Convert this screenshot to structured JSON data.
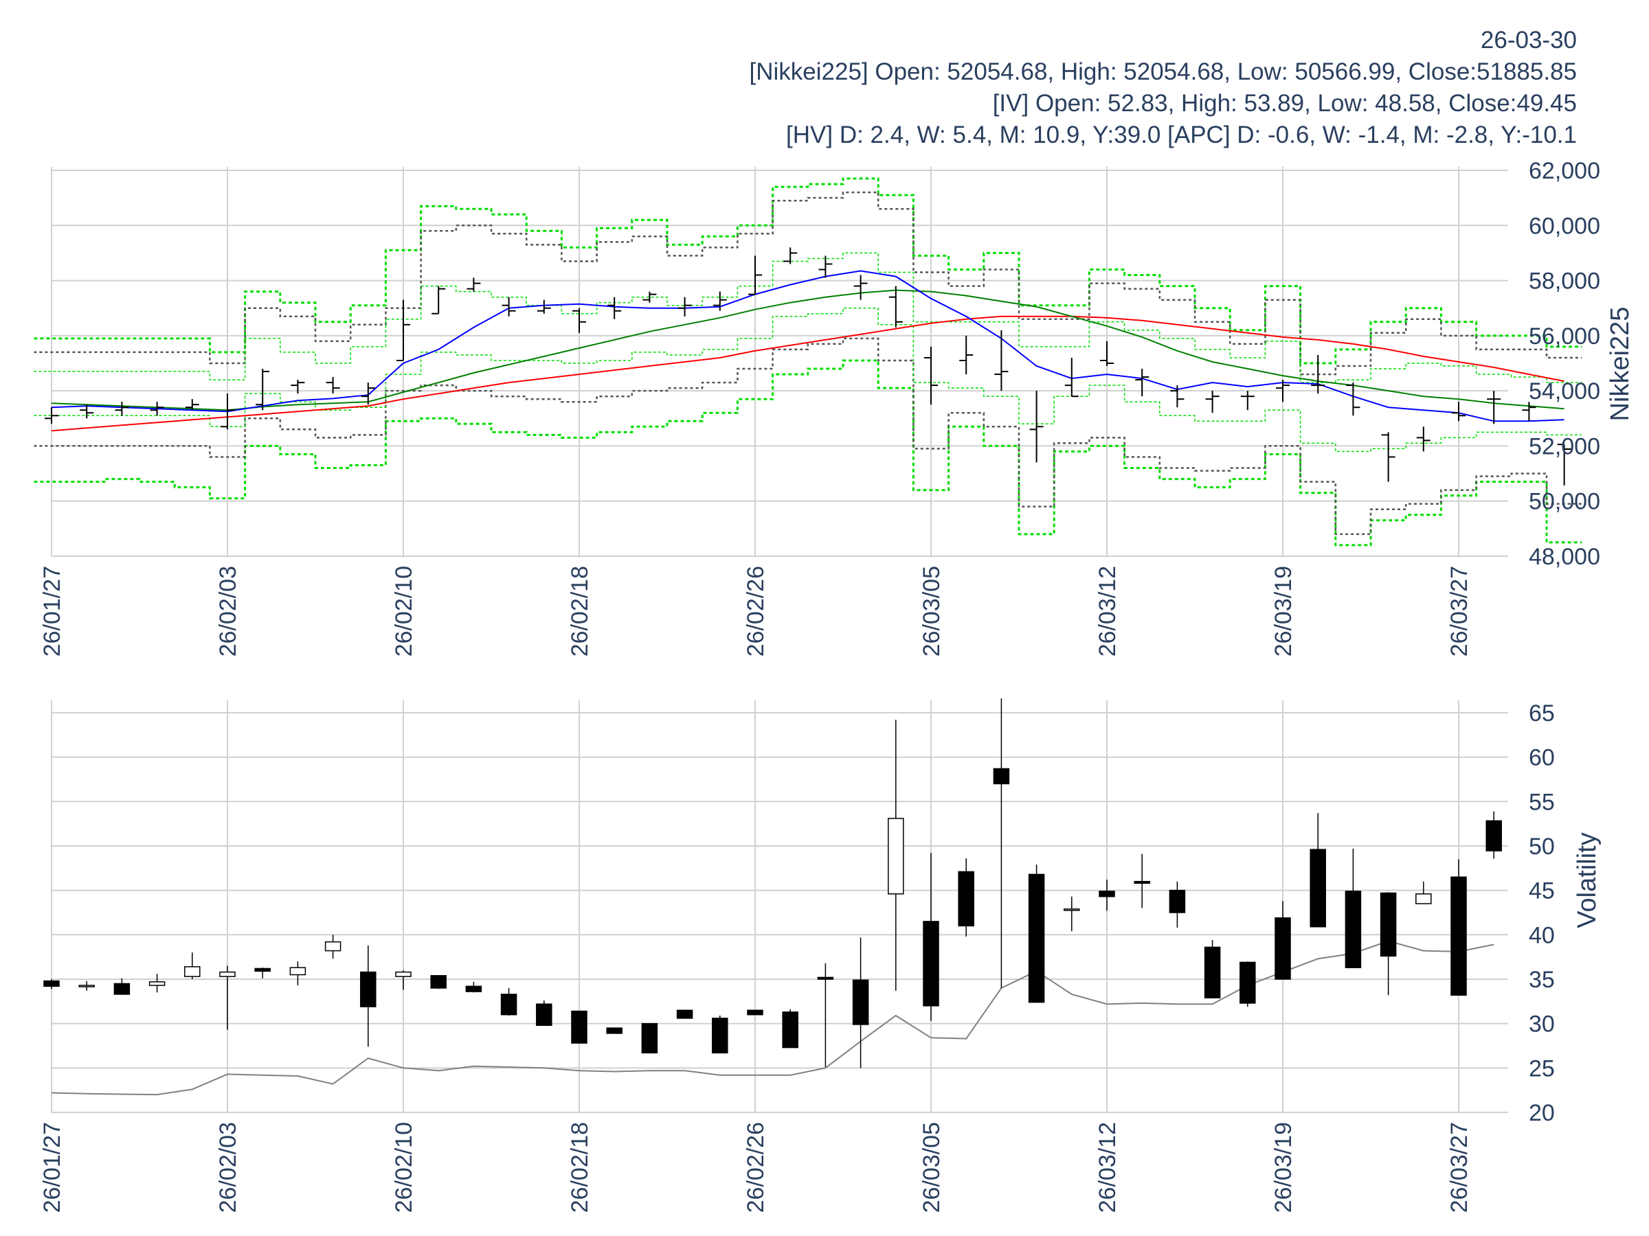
{
  "header": {
    "date": "26-03-30",
    "line1": "[Nikkei225] Open: 52054.68, High: 52054.68, Low: 50566.99, Close:51885.85",
    "line2": "[IV] Open: 52.83, High: 53.89, Low: 48.58, Close:49.45",
    "line3": "[HV] D: 2.4, W: 5.4, M: 10.9, Y:39.0 [APC] D: -0.6, W: -1.4, M: -2.8, Y:-10.1"
  },
  "colors": {
    "ma_blue": "#0000ff",
    "ma_green": "#008000",
    "ma_red": "#ff0000",
    "band_green": "#00dd00",
    "band_gray": "#555555",
    "grid": "#d0d0d0",
    "hv_line": "#808080",
    "candle_down": "#000000",
    "candle_up": "#ffffff"
  },
  "chart_data": [
    {
      "type": "ohlc",
      "ylabel": "Nikkei225",
      "ylim": [
        48000,
        62000
      ],
      "yticks": [
        "48,000",
        "50,000",
        "52,000",
        "54,000",
        "56,000",
        "58,000",
        "60,000",
        "62,000"
      ],
      "ytick_values": [
        48000,
        50000,
        52000,
        54000,
        56000,
        58000,
        60000,
        62000
      ],
      "xticks": [
        "26/01/27",
        "26/02/03",
        "26/02/10",
        "26/02/18",
        "26/02/26",
        "26/03/05",
        "26/03/12",
        "26/03/19",
        "26/03/27"
      ],
      "xtick_index": [
        0,
        5,
        10,
        15,
        20,
        25,
        30,
        35,
        40
      ],
      "grid": true,
      "ohlc": [
        [
          53000,
          53400,
          52800,
          53100
        ],
        [
          53300,
          53500,
          53000,
          53200
        ],
        [
          53300,
          53600,
          53100,
          53400
        ],
        [
          53300,
          53600,
          53100,
          53400
        ],
        [
          53400,
          53700,
          53300,
          53500
        ],
        [
          52700,
          53900,
          52600,
          53300
        ],
        [
          53500,
          54800,
          53300,
          54700
        ],
        [
          54200,
          54400,
          53900,
          54300
        ],
        [
          54300,
          54500,
          53900,
          54100
        ],
        [
          53800,
          54300,
          53500,
          54100
        ],
        [
          55100,
          57300,
          55100,
          56400
        ],
        [
          56800,
          57800,
          56800,
          57700
        ],
        [
          57700,
          58100,
          57600,
          57900
        ],
        [
          57100,
          57400,
          56700,
          56900
        ],
        [
          56900,
          57300,
          56800,
          57000
        ],
        [
          56900,
          57000,
          56100,
          56500
        ],
        [
          57100,
          57400,
          56600,
          56900
        ],
        [
          57300,
          57600,
          57200,
          57500
        ],
        [
          57000,
          57400,
          56700,
          57100
        ],
        [
          57100,
          57600,
          56900,
          57300
        ],
        [
          57500,
          58900,
          57500,
          58200
        ],
        [
          58700,
          59200,
          58600,
          59000
        ],
        [
          58400,
          58900,
          58100,
          58600
        ],
        [
          57800,
          58200,
          57300,
          57900
        ],
        [
          57400,
          57800,
          56300,
          56500
        ],
        [
          55200,
          55600,
          53500,
          54200
        ],
        [
          55100,
          56000,
          54600,
          55300
        ],
        [
          54600,
          56200,
          54000,
          54700
        ],
        [
          52600,
          54000,
          51400,
          52700
        ],
        [
          54200,
          55200,
          53800,
          53800
        ],
        [
          55100,
          55800,
          54900,
          55000
        ],
        [
          54400,
          54800,
          53800,
          54500
        ],
        [
          54000,
          54200,
          53400,
          53700
        ],
        [
          53700,
          54000,
          53200,
          53800
        ],
        [
          53800,
          54000,
          53300,
          53800
        ],
        [
          54100,
          54400,
          53600,
          54200
        ],
        [
          54200,
          55300,
          53900,
          54200
        ],
        [
          54200,
          54300,
          53100,
          53400
        ],
        [
          52400,
          52500,
          50700,
          51600
        ],
        [
          52300,
          52700,
          51800,
          52200
        ],
        [
          53200,
          53600,
          52900,
          53100
        ],
        [
          53700,
          54000,
          52800,
          53700
        ],
        [
          53300,
          53600,
          52900,
          53400
        ],
        [
          52054.68,
          52054.68,
          50566.99,
          51885.85
        ]
      ],
      "ma_blue": [
        53400,
        53450,
        53400,
        53350,
        53300,
        53250,
        53450,
        53650,
        53720,
        53850,
        55000,
        55500,
        56300,
        57000,
        57100,
        57150,
        57050,
        57000,
        57000,
        57050,
        57500,
        57850,
        58150,
        58350,
        58150,
        57350,
        56700,
        55900,
        54900,
        54450,
        54600,
        54450,
        54050,
        54300,
        54150,
        54300,
        54250,
        53800,
        53400,
        53300,
        53200,
        52900,
        52900,
        52950
      ],
      "ma_green": [
        53550,
        53500,
        53450,
        53400,
        53350,
        53300,
        53420,
        53500,
        53550,
        53600,
        53950,
        54300,
        54650,
        54950,
        55250,
        55550,
        55850,
        56150,
        56400,
        56650,
        56950,
        57200,
        57400,
        57550,
        57650,
        57600,
        57450,
        57250,
        57050,
        56700,
        56350,
        55950,
        55450,
        55050,
        54800,
        54550,
        54350,
        54200,
        54000,
        53800,
        53700,
        53550,
        53450,
        53350
      ],
      "ma_red": [
        52550,
        52650,
        52750,
        52850,
        52950,
        53050,
        53150,
        53250,
        53350,
        53450,
        53700,
        53900,
        54100,
        54300,
        54450,
        54600,
        54750,
        54900,
        55050,
        55200,
        55450,
        55650,
        55850,
        56050,
        56250,
        56450,
        56600,
        56700,
        56700,
        56700,
        56650,
        56550,
        56400,
        56250,
        56100,
        55950,
        55850,
        55700,
        55500,
        55250,
        55050,
        54850,
        54600,
        54350
      ],
      "band_outer_upper": [
        55900,
        55900,
        55900,
        55900,
        55900,
        55400,
        57600,
        57200,
        56500,
        57100,
        59100,
        60700,
        60600,
        60400,
        59800,
        59200,
        59900,
        60200,
        59300,
        59600,
        60000,
        61400,
        61500,
        61700,
        61100,
        58900,
        58400,
        59000,
        57100,
        57100,
        58400,
        58200,
        57800,
        57000,
        56200,
        57800,
        55000,
        55500,
        56500,
        57000,
        56500,
        56000,
        56000,
        55600
      ],
      "band_outer_lower": [
        50700,
        50700,
        50800,
        50700,
        50500,
        50100,
        52000,
        51700,
        51200,
        51300,
        52900,
        53000,
        52800,
        52500,
        52400,
        52300,
        52500,
        52700,
        52900,
        53200,
        53700,
        54600,
        54800,
        55100,
        54100,
        50400,
        52700,
        52000,
        48800,
        51800,
        52000,
        51200,
        50800,
        50500,
        50800,
        51700,
        50300,
        48400,
        49300,
        49500,
        50200,
        50700,
        50700,
        48500
      ],
      "band_gray_upper": [
        55400,
        55400,
        55400,
        55400,
        55400,
        55000,
        57000,
        56700,
        55800,
        56400,
        57000,
        59800,
        60000,
        59700,
        59300,
        58700,
        59400,
        59600,
        58900,
        59200,
        59700,
        60900,
        61000,
        61200,
        60600,
        58300,
        57800,
        58400,
        56600,
        56600,
        57900,
        57700,
        57300,
        56500,
        55700,
        57300,
        54600,
        54900,
        56100,
        56600,
        56000,
        55500,
        55500,
        55200
      ],
      "band_gray_lower": [
        52000,
        52000,
        52000,
        52000,
        52000,
        51600,
        53000,
        52600,
        52300,
        52400,
        54000,
        54200,
        54000,
        53800,
        53700,
        53600,
        53800,
        54000,
        54100,
        54300,
        54800,
        55500,
        55700,
        55900,
        55100,
        51900,
        53200,
        52700,
        49800,
        52100,
        52300,
        51600,
        51200,
        51100,
        51200,
        52000,
        50700,
        48800,
        49700,
        49900,
        50400,
        50900,
        51000,
        49900
      ],
      "band_inner_upper": [
        54700,
        54700,
        54700,
        54700,
        54700,
        54400,
        55900,
        55400,
        55000,
        55600,
        56600,
        57800,
        57600,
        57400,
        57100,
        56800,
        57200,
        57400,
        57100,
        57400,
        57800,
        58700,
        58800,
        59000,
        58300,
        56500,
        56500,
        56500,
        55600,
        55600,
        56500,
        56200,
        55900,
        55500,
        55200,
        55800,
        54300,
        54400,
        54800,
        55000,
        54900,
        54600,
        54500,
        54300
      ],
      "band_inner_lower": [
        53100,
        53100,
        53100,
        53100,
        53100,
        52700,
        53900,
        53600,
        53300,
        53400,
        54600,
        55400,
        55300,
        55100,
        55100,
        55000,
        55100,
        55400,
        55300,
        55500,
        55900,
        56700,
        56800,
        57000,
        56400,
        54300,
        54100,
        53800,
        52800,
        53800,
        54200,
        53600,
        53100,
        52900,
        52900,
        53300,
        52100,
        51800,
        51900,
        52100,
        52300,
        52500,
        52500,
        52400
      ]
    },
    {
      "type": "candlestick",
      "ylabel": "Volatility",
      "ylim": [
        20,
        66
      ],
      "yticks": [
        "20",
        "25",
        "30",
        "35",
        "40",
        "45",
        "50",
        "55",
        "60",
        "65"
      ],
      "ytick_values": [
        20,
        25,
        30,
        35,
        40,
        45,
        50,
        55,
        60,
        65
      ],
      "xticks": [
        "26/01/27",
        "26/02/03",
        "26/02/10",
        "26/02/18",
        "26/02/26",
        "26/03/05",
        "26/03/12",
        "26/03/19",
        "26/03/27"
      ],
      "xtick_index": [
        0,
        5,
        10,
        15,
        20,
        25,
        30,
        35,
        40
      ],
      "grid": true,
      "ohlc": [
        [
          34.8,
          35.0,
          33.9,
          34.2
        ],
        [
          34.2,
          34.8,
          33.7,
          34.3
        ],
        [
          34.5,
          35.1,
          33.3,
          33.3
        ],
        [
          34.3,
          35.6,
          33.5,
          34.7
        ],
        [
          35.3,
          38.0,
          35.0,
          36.4
        ],
        [
          35.3,
          36.5,
          29.3,
          35.8
        ],
        [
          36.2,
          36.3,
          35.1,
          35.9
        ],
        [
          35.5,
          37.0,
          34.3,
          36.3
        ],
        [
          38.2,
          40.0,
          37.3,
          39.2
        ],
        [
          35.8,
          38.8,
          27.4,
          31.9
        ],
        [
          35.3,
          36.0,
          33.8,
          35.8
        ],
        [
          35.4,
          35.4,
          33.9,
          34.0
        ],
        [
          34.2,
          34.7,
          33.5,
          33.6
        ],
        [
          33.3,
          34.0,
          30.9,
          31.0
        ],
        [
          32.2,
          32.6,
          29.8,
          29.8
        ],
        [
          31.4,
          31.4,
          27.8,
          27.8
        ],
        [
          29.5,
          29.5,
          28.9,
          28.9
        ],
        [
          30.0,
          30.0,
          26.7,
          26.7
        ],
        [
          31.5,
          31.5,
          30.6,
          30.6
        ],
        [
          30.6,
          30.9,
          26.7,
          26.7
        ],
        [
          31.5,
          31.5,
          31.0,
          31.0
        ],
        [
          31.3,
          31.6,
          27.3,
          27.3
        ],
        [
          35.2,
          36.8,
          25.1,
          35.0
        ],
        [
          34.9,
          39.7,
          25.0,
          29.9
        ],
        [
          44.6,
          64.2,
          33.7,
          53.1
        ],
        [
          41.5,
          49.2,
          30.3,
          32.0
        ],
        [
          47.1,
          48.6,
          39.8,
          41.0
        ],
        [
          58.7,
          66.6,
          34.0,
          57.0
        ],
        [
          46.8,
          47.9,
          32.4,
          32.4
        ],
        [
          42.8,
          44.3,
          40.4,
          42.9
        ],
        [
          44.9,
          46.2,
          42.7,
          44.3
        ],
        [
          46.0,
          49.1,
          43.0,
          45.8
        ],
        [
          45.0,
          46.0,
          40.8,
          42.5
        ],
        [
          38.6,
          39.4,
          32.9,
          32.9
        ],
        [
          36.9,
          37.0,
          31.9,
          32.3
        ],
        [
          41.9,
          43.8,
          35.0,
          35.0
        ],
        [
          49.6,
          53.7,
          40.9,
          40.9
        ],
        [
          44.9,
          49.7,
          36.3,
          36.3
        ],
        [
          44.7,
          44.8,
          33.2,
          37.6
        ],
        [
          43.5,
          46.0,
          43.5,
          44.6
        ],
        [
          46.5,
          48.5,
          33.2,
          33.2
        ],
        [
          52.83,
          53.89,
          48.58,
          49.45
        ]
      ],
      "hv_line": [
        22.2,
        22.1,
        22.05,
        22.0,
        22.6,
        24.3,
        24.2,
        24.1,
        23.2,
        26.1,
        25.0,
        24.7,
        25.2,
        25.1,
        25.0,
        24.7,
        24.6,
        24.7,
        24.7,
        24.2,
        24.2,
        24.2,
        25.0,
        28.0,
        30.9,
        28.4,
        28.3,
        34.0,
        35.9,
        33.3,
        32.2,
        32.3,
        32.2,
        32.2,
        34.3,
        35.8,
        37.3,
        37.9,
        39.3,
        38.2,
        38.1,
        38.9
      ]
    }
  ]
}
